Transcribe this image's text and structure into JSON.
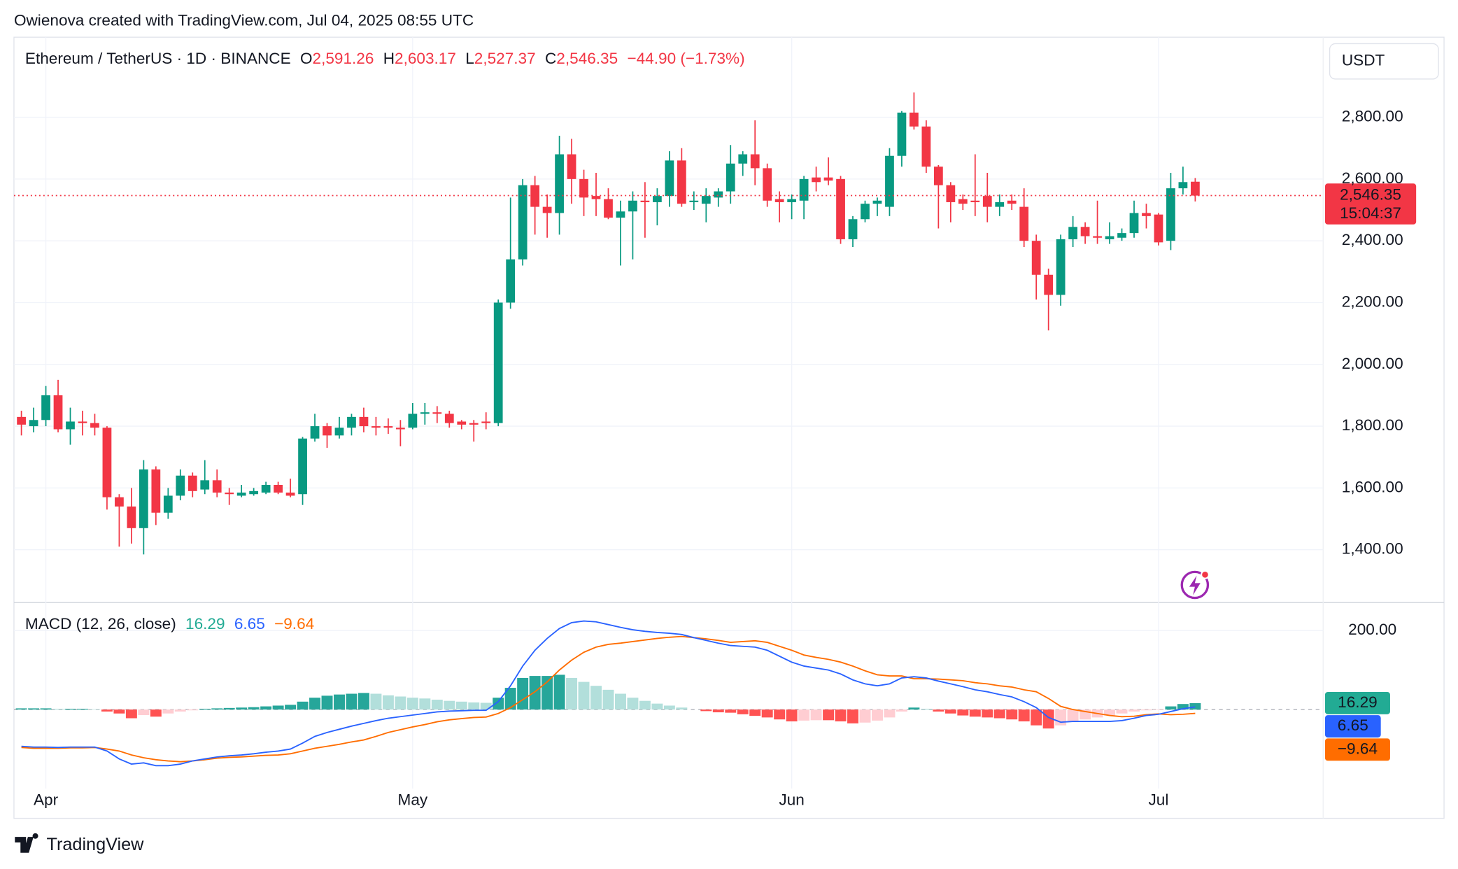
{
  "attribution": "Owienova created with TradingView.com, Jul 04, 2025 08:55 UTC",
  "brand": "TradingView",
  "chart_data": [
    {
      "type": "candlestick",
      "title": "Ethereum / TetherUS · 1D · BINANCE",
      "ohlc_labels": [
        {
          "key": "O",
          "label": "2,591.26"
        },
        {
          "key": "H",
          "label": "2,603.17"
        },
        {
          "key": "L",
          "label": "2,527.37"
        },
        {
          "key": "C",
          "label": "2,546.35"
        }
      ],
      "change_label": "−44.90 (−1.73%)",
      "currency": "USDT",
      "countdown": "15:04:37",
      "categories": [
        null,
        null,
        "Apr",
        null,
        null,
        null,
        null,
        null,
        null,
        null,
        null,
        null,
        null,
        null,
        null,
        null,
        null,
        null,
        null,
        null,
        null,
        null,
        null,
        null,
        null,
        null,
        null,
        null,
        null,
        null,
        null,
        null,
        "May",
        null,
        null,
        null,
        null,
        null,
        null,
        null,
        null,
        null,
        null,
        null,
        null,
        null,
        null,
        null,
        null,
        null,
        null,
        null,
        null,
        null,
        null,
        null,
        null,
        null,
        null,
        null,
        null,
        null,
        null,
        "Jun",
        null,
        null,
        null,
        null,
        null,
        null,
        null,
        null,
        null,
        null,
        null,
        null,
        null,
        null,
        null,
        null,
        null,
        null,
        null,
        null,
        null,
        null,
        null,
        null,
        null,
        null,
        null,
        null,
        null,
        "Jul",
        null,
        null,
        null
      ],
      "open": [
        1830,
        1800,
        1820,
        1900,
        1790,
        1815,
        1810,
        1795,
        1570,
        1540,
        1470,
        1660,
        1520,
        1575,
        1640,
        1595,
        1625,
        1585,
        1575,
        1580,
        1585,
        1610,
        1585,
        1580,
        1760,
        1800,
        1770,
        1795,
        1830,
        1800,
        1800,
        1795,
        1795,
        1840,
        1845,
        1840,
        1815,
        1810,
        1815,
        1810,
        2200,
        2340,
        2580,
        2510,
        2490,
        2680,
        2600,
        2545,
        2535,
        2475,
        2495,
        2530,
        2525,
        2545,
        2660,
        2525,
        2520,
        2540,
        2560,
        2650,
        2680,
        2635,
        2535,
        2525,
        2530,
        2605,
        2605,
        2600,
        2405,
        2470,
        2520,
        2510,
        2675,
        2815,
        2770,
        2640,
        2580,
        2535,
        2530,
        2545,
        2510,
        2530,
        2510,
        2400,
        2290,
        2225,
        2405,
        2445,
        2415,
        2405,
        2410,
        2425,
        2490,
        2485,
        2400,
        2570,
        2591.26
      ],
      "high": [
        1850,
        1860,
        1930,
        1950,
        1860,
        1850,
        1840,
        1800,
        1580,
        1600,
        1690,
        1670,
        1600,
        1660,
        1650,
        1690,
        1660,
        1600,
        1610,
        1600,
        1620,
        1620,
        1630,
        1765,
        1840,
        1810,
        1830,
        1840,
        1860,
        1830,
        1825,
        1820,
        1875,
        1875,
        1865,
        1850,
        1820,
        1820,
        1845,
        2210,
        2540,
        2600,
        2610,
        2550,
        2740,
        2730,
        2630,
        2620,
        2570,
        2530,
        2560,
        2590,
        2570,
        2690,
        2700,
        2560,
        2570,
        2570,
        2710,
        2690,
        2790,
        2650,
        2560,
        2550,
        2610,
        2640,
        2670,
        2610,
        2480,
        2530,
        2540,
        2700,
        2820,
        2880,
        2790,
        2645,
        2590,
        2550,
        2680,
        2620,
        2550,
        2550,
        2570,
        2420,
        2310,
        2420,
        2480,
        2460,
        2530,
        2460,
        2440,
        2530,
        2520,
        2490,
        2620,
        2640,
        2603.17
      ],
      "low": [
        1770,
        1780,
        1800,
        1780,
        1740,
        1770,
        1770,
        1530,
        1410,
        1420,
        1385,
        1480,
        1500,
        1560,
        1570,
        1580,
        1570,
        1545,
        1570,
        1575,
        1580,
        1580,
        1570,
        1545,
        1750,
        1730,
        1760,
        1770,
        1780,
        1770,
        1775,
        1735,
        1790,
        1805,
        1810,
        1795,
        1790,
        1750,
        1790,
        1800,
        2180,
        2320,
        2420,
        2410,
        2420,
        2520,
        2480,
        2480,
        2470,
        2320,
        2340,
        2410,
        2450,
        2510,
        2510,
        2500,
        2460,
        2510,
        2520,
        2610,
        2580,
        2510,
        2460,
        2470,
        2470,
        2560,
        2580,
        2390,
        2380,
        2460,
        2480,
        2480,
        2640,
        2760,
        2620,
        2440,
        2460,
        2500,
        2480,
        2460,
        2480,
        2500,
        2380,
        2210,
        2110,
        2190,
        2380,
        2390,
        2390,
        2390,
        2400,
        2410,
        2440,
        2385,
        2370,
        2550,
        2527.37
      ],
      "close": [
        1805,
        1820,
        1900,
        1790,
        1815,
        1810,
        1795,
        1570,
        1540,
        1470,
        1660,
        1520,
        1575,
        1640,
        1590,
        1625,
        1585,
        1580,
        1585,
        1590,
        1610,
        1585,
        1575,
        1760,
        1800,
        1770,
        1795,
        1830,
        1800,
        1795,
        1795,
        1790,
        1840,
        1845,
        1840,
        1810,
        1805,
        1805,
        1810,
        2200,
        2340,
        2580,
        2510,
        2490,
        2680,
        2600,
        2540,
        2535,
        2475,
        2495,
        2530,
        2525,
        2545,
        2660,
        2520,
        2530,
        2545,
        2560,
        2650,
        2680,
        2635,
        2530,
        2525,
        2535,
        2600,
        2590,
        2595,
        2405,
        2470,
        2520,
        2530,
        2675,
        2815,
        2770,
        2640,
        2580,
        2525,
        2520,
        2525,
        2510,
        2525,
        2520,
        2400,
        2290,
        2225,
        2405,
        2445,
        2415,
        2410,
        2415,
        2425,
        2490,
        2480,
        2395,
        2570,
        2590,
        2546.35
      ],
      "up_color": "#089981",
      "down_color": "#f23645",
      "ylim": [
        1229,
        3044
      ],
      "yticks": [
        {
          "value": 1400,
          "label": "1,400.00"
        },
        {
          "value": 1600,
          "label": "1,600.00"
        },
        {
          "value": 1800,
          "label": "1,800.00"
        },
        {
          "value": 2000,
          "label": "2,000.00"
        },
        {
          "value": 2200,
          "label": "2,200.00"
        },
        {
          "value": 2400,
          "label": "2,400.00"
        },
        {
          "value": 2600,
          "label": "2,600.00"
        },
        {
          "value": 2800,
          "label": "2,800.00"
        }
      ],
      "grid": true
    },
    {
      "type": "macd",
      "title": "MACD (12, 26, close)",
      "histogram": {
        "colors": [
          "#26a69a",
          "#b2dfdb",
          "#ff5252",
          "#ffcdd2"
        ],
        "values": [
          3,
          3,
          3,
          2,
          2,
          2,
          1,
          -5,
          -10,
          -22,
          -14,
          -18,
          -10,
          -5,
          -2,
          2,
          3,
          4,
          5,
          6,
          8,
          10,
          12,
          20,
          30,
          35,
          38,
          40,
          42,
          40,
          36,
          33,
          30,
          28,
          25,
          22,
          20,
          18,
          17,
          30,
          55,
          80,
          85,
          85,
          88,
          80,
          70,
          60,
          50,
          40,
          30,
          22,
          15,
          10,
          5,
          0,
          -4,
          -7,
          -8,
          -12,
          -16,
          -20,
          -25,
          -30,
          -28,
          -27,
          -27,
          -30,
          -35,
          -33,
          -28,
          -20,
          -5,
          5,
          2,
          -5,
          -10,
          -15,
          -18,
          -20,
          -22,
          -25,
          -30,
          -40,
          -48,
          -40,
          -30,
          -25,
          -20,
          -15,
          -10,
          -5,
          -2,
          -1,
          8,
          14,
          16.29
        ]
      },
      "macd": {
        "color": "#2962ff",
        "values": [
          -93,
          -95,
          -95,
          -96,
          -95,
          -95,
          -95,
          -105,
          -125,
          -138,
          -135,
          -142,
          -142,
          -138,
          -130,
          -125,
          -120,
          -117,
          -115,
          -112,
          -108,
          -105,
          -100,
          -85,
          -68,
          -58,
          -50,
          -42,
          -35,
          -28,
          -22,
          -18,
          -14,
          -10,
          -6,
          -4,
          -3,
          -2,
          -2,
          20,
          60,
          110,
          150,
          180,
          205,
          220,
          224,
          222,
          215,
          208,
          202,
          198,
          195,
          193,
          190,
          182,
          175,
          168,
          162,
          160,
          158,
          150,
          135,
          120,
          110,
          105,
          100,
          90,
          75,
          65,
          60,
          65,
          80,
          83,
          80,
          72,
          65,
          58,
          50,
          45,
          38,
          32,
          20,
          5,
          -20,
          -32,
          -30,
          -30,
          -30,
          -30,
          -28,
          -22,
          -15,
          -12,
          -5,
          2,
          6.65
        ]
      },
      "signal": {
        "color": "#ff6d00",
        "last_label": "−9.64",
        "values": [
          -96,
          -98,
          -98,
          -98,
          -97,
          -97,
          -96,
          -100,
          -105,
          -115,
          -122,
          -127,
          -130,
          -132,
          -130,
          -127,
          -123,
          -121,
          -120,
          -118,
          -116,
          -115,
          -112,
          -105,
          -98,
          -93,
          -88,
          -82,
          -77,
          -68,
          -58,
          -51,
          -44,
          -38,
          -31,
          -26,
          -23,
          -20,
          -19,
          -10,
          5,
          25,
          45,
          70,
          100,
          125,
          145,
          158,
          165,
          168,
          172,
          176,
          180,
          183,
          185,
          182,
          179,
          175,
          170,
          172,
          174,
          170,
          160,
          150,
          138,
          132,
          127,
          120,
          110,
          98,
          88,
          85,
          85,
          78,
          78,
          77,
          75,
          73,
          68,
          65,
          60,
          57,
          50,
          45,
          28,
          8,
          0,
          -5,
          -10,
          -15,
          -18,
          -17,
          -13,
          -11,
          -13,
          -12,
          -9.64
        ]
      },
      "ylim": [
        -200,
        266
      ],
      "yticks": [
        {
          "value": 200,
          "label": "200.00"
        }
      ],
      "grid": true
    }
  ]
}
